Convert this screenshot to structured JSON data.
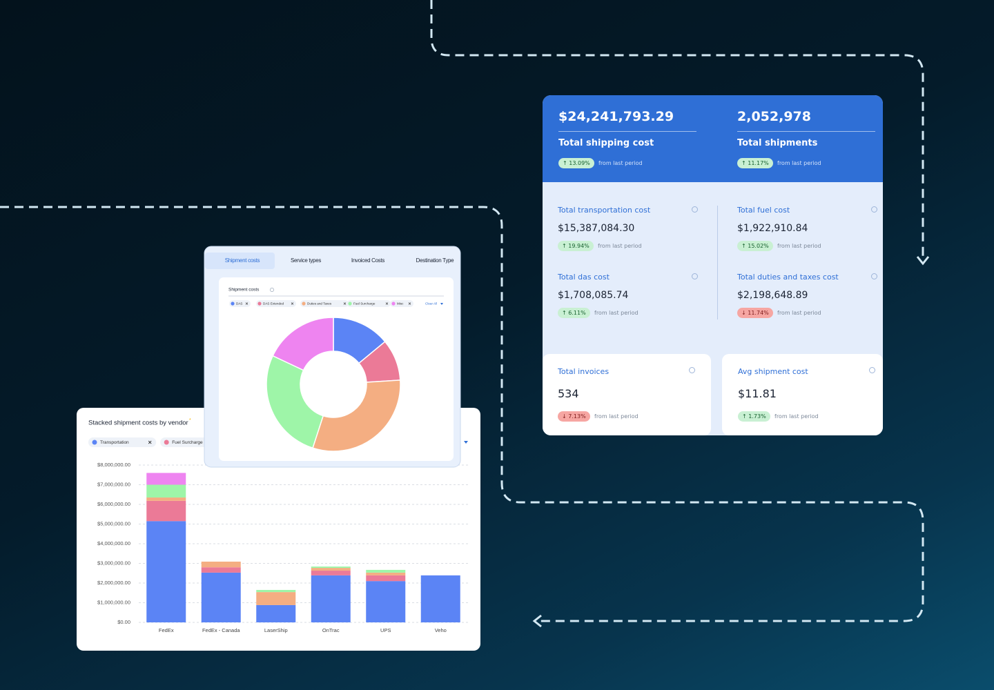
{
  "kpi_panel": {
    "headline": [
      {
        "value": "$24,241,793.29",
        "label": "Total shipping cost",
        "change": "13.09%",
        "trend": "up",
        "note": "from last period"
      },
      {
        "value": "2,052,978",
        "label": "Total shipments",
        "change": "11.17%",
        "trend": "up",
        "note": "from last period"
      }
    ],
    "metrics": [
      {
        "label": "Total transportation cost",
        "value": "$15,387,084.30",
        "change": "19.94%",
        "trend": "up",
        "note": "from last period"
      },
      {
        "label": "Total fuel cost",
        "value": "$1,922,910.84",
        "change": "15.02%",
        "trend": "up",
        "note": "from last period"
      },
      {
        "label": "Total das cost",
        "value": "$1,708,085.74",
        "change": "6.11%",
        "trend": "up",
        "note": "from last period"
      },
      {
        "label": "Total duties and taxes cost",
        "value": "$2,198,648.89",
        "change": "11.74%",
        "trend": "down",
        "note": "from last period"
      }
    ],
    "cards": [
      {
        "label": "Total invoices",
        "value": "534",
        "change": "7.13%",
        "trend": "down",
        "note": "from last period"
      },
      {
        "label": "Avg shipment cost",
        "value": "$11.81",
        "change": "1.73%",
        "trend": "up",
        "note": "from last period"
      }
    ]
  },
  "donut_tabs": [
    "Shipment costs",
    "Service types",
    "Invoiced Costs",
    "Destination Type"
  ],
  "chart_data": [
    {
      "type": "bar",
      "stacked": true,
      "title": "Stacked shipment costs by vendor",
      "categories": [
        "FedEx",
        "FedEx - Canada",
        "LaserShip",
        "OnTrac",
        "UPS",
        "Veho"
      ],
      "series": [
        {
          "name": "Transportation",
          "color": "#5b84f5",
          "values": [
            5150000,
            2530000,
            880000,
            2390000,
            2100000,
            2390000
          ]
        },
        {
          "name": "Fuel Surcharge",
          "color": "#eb7a97",
          "values": [
            1030000,
            270000,
            0,
            240000,
            290000,
            0
          ]
        },
        {
          "color": "#f4ae82",
          "values": [
            170000,
            290000,
            660000,
            140000,
            140000,
            0
          ]
        },
        {
          "color": "#9ef5a8",
          "values": [
            650000,
            0,
            110000,
            70000,
            140000,
            0
          ]
        },
        {
          "color": "#ee84f0",
          "values": [
            600000,
            0,
            0,
            0,
            0,
            0
          ]
        }
      ],
      "ylim": [
        0,
        8000000
      ],
      "yticks": [
        {
          "value": 0,
          "label": "$0.00"
        },
        {
          "value": 1000000,
          "label": "$1,000,000.00"
        },
        {
          "value": 2000000,
          "label": "$2,000,000.00"
        },
        {
          "value": 3000000,
          "label": "$3,000,000.00"
        },
        {
          "value": 4000000,
          "label": "$4,000,000.00"
        },
        {
          "value": 5000000,
          "label": "$5,000,000.00"
        },
        {
          "value": 6000000,
          "label": "$6,000,000.00"
        },
        {
          "value": 7000000,
          "label": "$7,000,000.00"
        },
        {
          "value": 8000000,
          "label": "$8,000,000.00"
        }
      ],
      "grid": true
    },
    {
      "type": "pie",
      "donut": true,
      "title": "Shipment costs",
      "categories": [
        "DAS",
        "DAS Extended",
        "Duties and Taxes",
        "Fuel Surcharge",
        "Misc"
      ],
      "values": [
        14,
        10,
        31,
        27,
        18
      ],
      "colors": [
        "#5b84f5",
        "#eb7a97",
        "#f4ae82",
        "#9ef5a8",
        "#ee84f0"
      ],
      "clear_filters": "Clear All"
    }
  ]
}
